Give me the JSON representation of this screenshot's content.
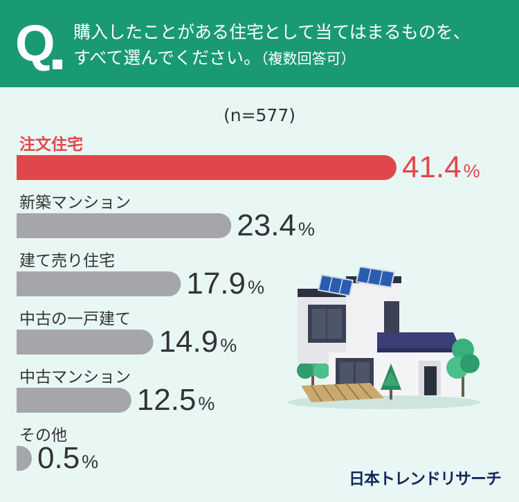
{
  "header": {
    "q_mark": "Q",
    "question_line1": "購入したことがある住宅として当てはまるものを、",
    "question_line2": "すべて選んでください。",
    "question_note": "（複数回答可）"
  },
  "sample_size": "(n=577)",
  "chart_data": {
    "type": "bar",
    "orientation": "horizontal",
    "categories": [
      "注文住宅",
      "新築マンション",
      "建て売り住宅",
      "中古の一戸建て",
      "中古マンション",
      "その他"
    ],
    "values": [
      41.4,
      23.4,
      17.9,
      14.9,
      12.5,
      0.5
    ],
    "value_labels": [
      "41.4",
      "23.4",
      "17.9",
      "14.9",
      "12.5",
      "0.5"
    ],
    "unit": "%",
    "highlight_color": "#e0474c",
    "bar_color": "#a6a6aa",
    "label_color": "#333333"
  },
  "brand": {
    "logo_text": "日本トレンドリサーチ"
  },
  "colors": {
    "header_bg": "#1a9a72",
    "page_bg": "#e8f7f3"
  }
}
